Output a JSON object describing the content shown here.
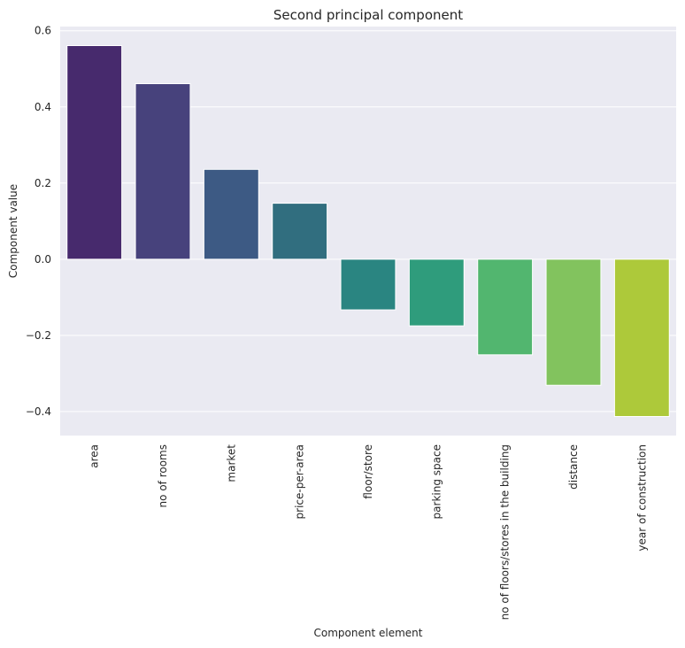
{
  "chart_data": {
    "type": "bar",
    "title": "Second principal component",
    "xlabel": "Component element",
    "ylabel": "Component value",
    "categories": [
      "area",
      "no of rooms",
      "market",
      "price-per-area",
      "floor/store",
      "parking space",
      "no of floors/stores in the building",
      "distance",
      "year of construction"
    ],
    "values": [
      0.561,
      0.461,
      0.236,
      0.147,
      -0.133,
      -0.175,
      -0.251,
      -0.331,
      -0.413
    ],
    "colors": [
      "#472a6d",
      "#47427c",
      "#3d5a84",
      "#316e7f",
      "#2a8581",
      "#2f9c7c",
      "#52b66f",
      "#82c35e",
      "#adc93a"
    ],
    "yticks": [
      -0.4,
      -0.2,
      0.0,
      0.2,
      0.4,
      0.6
    ],
    "ytick_labels": [
      "−0.4",
      "−0.2",
      "0.0",
      "0.2",
      "0.4",
      "0.6"
    ],
    "ylim": [
      -0.463,
      0.611
    ],
    "grid": true,
    "background": "#eaeaf2"
  }
}
